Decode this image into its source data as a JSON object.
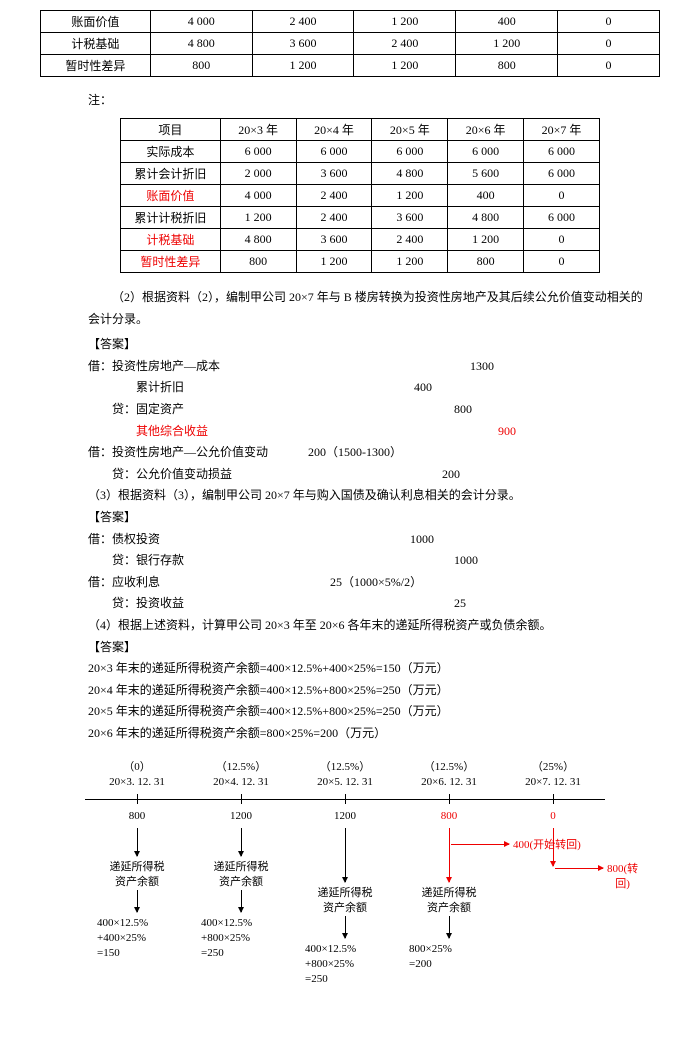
{
  "table1": {
    "rows": [
      {
        "label": "账面价值",
        "v": [
          "4 000",
          "2 400",
          "1 200",
          "400",
          "0"
        ]
      },
      {
        "label": "计税基础",
        "v": [
          "4 800",
          "3 600",
          "2 400",
          "1 200",
          "0"
        ]
      },
      {
        "label": "暂时性差异",
        "v": [
          "800",
          "1 200",
          "1 200",
          "800",
          "0"
        ]
      }
    ]
  },
  "note_label": "注：",
  "table2": {
    "headers": [
      "项目",
      "20×3 年",
      "20×4 年",
      "20×5 年",
      "20×6 年",
      "20×7 年"
    ],
    "rows": [
      {
        "label": "实际成本",
        "red": false,
        "v": [
          "6 000",
          "6 000",
          "6 000",
          "6 000",
          "6 000"
        ]
      },
      {
        "label": "累计会计折旧",
        "red": false,
        "v": [
          "2 000",
          "3 600",
          "4 800",
          "5 600",
          "6 000"
        ]
      },
      {
        "label": "账面价值",
        "red": true,
        "v": [
          "4 000",
          "2 400",
          "1 200",
          "400",
          "0"
        ]
      },
      {
        "label": "累计计税折旧",
        "red": false,
        "v": [
          "1 200",
          "2 400",
          "3 600",
          "4 800",
          "6 000"
        ]
      },
      {
        "label": "计税基础",
        "red": true,
        "v": [
          "4 800",
          "3 600",
          "2 400",
          "1 200",
          "0"
        ]
      },
      {
        "label": "暂时性差异",
        "red": true,
        "v": [
          "800",
          "1 200",
          "1 200",
          "800",
          "0"
        ]
      }
    ]
  },
  "q2": "（2）根据资料（2），编制甲公司 20×7 年与 B 楼房转换为投资性房地产及其后续公允价值变动相关的会计分录。",
  "answer_label": "【答案】",
  "entries2": [
    {
      "l": "借：投资性房地产—成本",
      "v": "1300",
      "red": false,
      "ind": 0,
      "sp": "spacer1"
    },
    {
      "l": "累计折旧",
      "v": "400",
      "red": false,
      "ind": 2,
      "sp": "spacer2"
    },
    {
      "l": "贷：固定资产",
      "v": "800",
      "red": false,
      "ind": 1,
      "sp": "spacer3"
    },
    {
      "l": "其他综合收益",
      "v": "900",
      "red": true,
      "ind": 2,
      "sp": "spacer4"
    },
    {
      "l": "借：投资性房地产—公允价值变动",
      "v": "200（1500-1300）",
      "red": false,
      "ind": 0,
      "sp": ""
    },
    {
      "l": "贷：公允价值变动损益",
      "v": "200",
      "red": false,
      "ind": 1,
      "sp": "spacer5"
    }
  ],
  "q3": "（3）根据资料（3），编制甲公司 20×7 年与购入国债及确认利息相关的会计分录。",
  "entries3": [
    {
      "l": "借：债权投资",
      "v": "1000",
      "red": false,
      "ind": 0,
      "sp": "spacer1"
    },
    {
      "l": "贷：银行存款",
      "v": "1000",
      "red": false,
      "ind": 1,
      "sp": "spacer3"
    },
    {
      "l": "借：应收利息",
      "v": "25（1000×5%/2）",
      "red": false,
      "ind": 0,
      "sp": "spacer6"
    },
    {
      "l": "贷：投资收益",
      "v": "25",
      "red": false,
      "ind": 1,
      "sp": "spacer3"
    }
  ],
  "q4": "（4）根据上述资料，计算甲公司 20×3 年至 20×6 各年末的递延所得税资产或负债余额。",
  "calc": [
    "20×3 年末的递延所得税资产余额=400×12.5%+400×25%=150（万元）",
    "20×4 年末的递延所得税资产余额=400×12.5%+800×25%=250（万元）",
    "20×5 年末的递延所得税资产余额=400×12.5%+800×25%=250（万元）",
    "20×6 年末的递延所得税资产余额=800×25%=200（万元）"
  ],
  "timeline": {
    "nodes": [
      {
        "pct": "（0）",
        "date": "20×3. 12. 31"
      },
      {
        "pct": "（12.5%）",
        "date": "20×4. 12. 31"
      },
      {
        "pct": "（12.5%）",
        "date": "20×5. 12. 31"
      },
      {
        "pct": "（12.5%）",
        "date": "20×6. 12. 31"
      },
      {
        "pct": "（25%）",
        "date": "20×7. 12. 31"
      }
    ],
    "diffs": [
      "800",
      "1200",
      "1200",
      "800",
      "0"
    ],
    "branch_text": "递延所得税\n资产余额",
    "branch_calc": [
      "400×12.5%\n+400×25%\n=150",
      "400×12.5%\n+800×25%\n=250",
      "400×12.5%\n+800×25%\n=250",
      "800×25%\n=200"
    ],
    "red_h1": "400(开始转回)",
    "red_h2": "800(转回)",
    "colors": {
      "red": "#e00",
      "black": "#000"
    }
  }
}
